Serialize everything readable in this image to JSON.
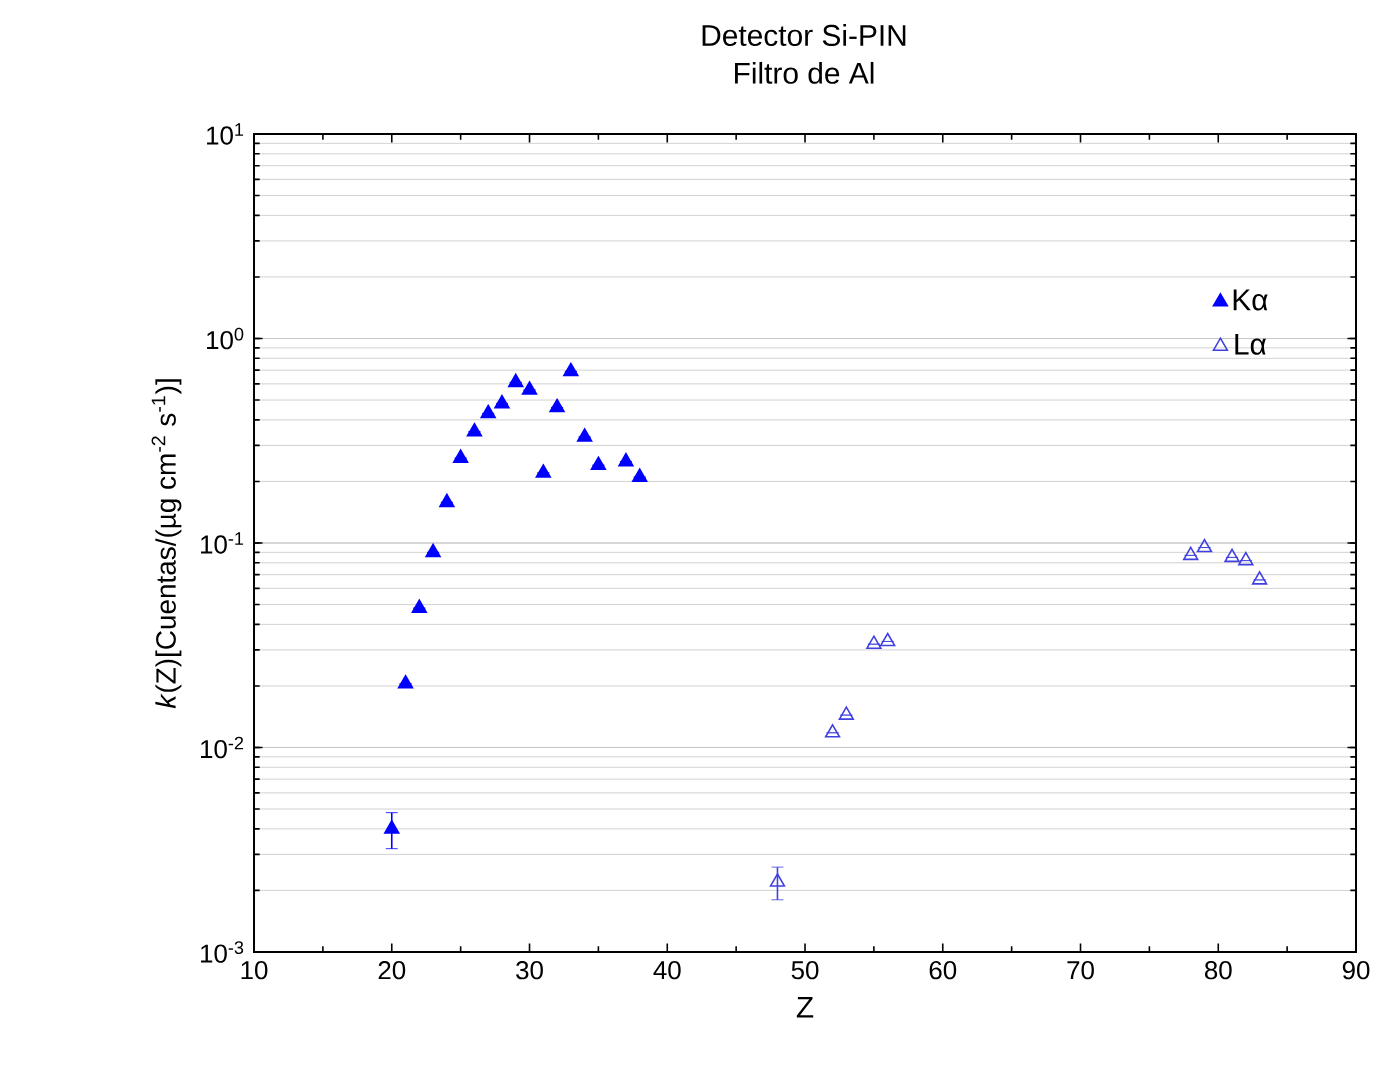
{
  "chart_data": {
    "type": "scatter",
    "title": "Detector Si-PIN",
    "subtitle": "Filtro de Al",
    "xlabel": "Z",
    "ylabel": "*k*(Z)[Cuentas/(µg cm$^{-2}$ s$^{-1}$)]",
    "log": "y",
    "grid": "y",
    "legend": "top right",
    "marker": "triangle",
    "xlim": [
      10,
      90
    ],
    "xticks": [
      10,
      20,
      30,
      40,
      50,
      60,
      70,
      80,
      90
    ],
    "ylim": [
      0.001,
      10
    ],
    "yticks": [
      {
        "value": 0.001,
        "label": "10$^{-3}$"
      },
      {
        "value": 0.01,
        "label": "10$^{-2}$"
      },
      {
        "value": 0.1,
        "label": "10$^{-1}$"
      },
      {
        "value": 1,
        "label": "10$^{0}$"
      },
      {
        "value": 10,
        "label": "10$^{1}$"
      }
    ],
    "series": [
      {
        "name": "Kα",
        "color": "#0000ff",
        "x": [
          20,
          21,
          22,
          23,
          24,
          25,
          26,
          27,
          28,
          29,
          30,
          31,
          32,
          33,
          34,
          35,
          37,
          38
        ],
        "values": [
          0.004,
          0.0205,
          0.048,
          0.09,
          0.158,
          0.26,
          0.35,
          0.43,
          0.48,
          0.61,
          0.56,
          0.22,
          0.46,
          0.69,
          0.33,
          0.24,
          0.25,
          0.21
        ],
        "errors": [
          0.0008,
          null,
          null,
          null,
          null,
          null,
          null,
          null,
          null,
          null,
          null,
          null,
          null,
          null,
          null,
          null,
          null,
          null
        ]
      },
      {
        "name": "Lα",
        "color": "#4040e0",
        "x": [
          48,
          52,
          53,
          55,
          56,
          78,
          79,
          81,
          82,
          83
        ],
        "values": [
          0.0022,
          0.0118,
          0.0144,
          0.032,
          0.033,
          0.087,
          0.095,
          0.085,
          0.082,
          0.066
        ],
        "errors": [
          0.0004,
          null,
          null,
          null,
          null,
          null,
          null,
          null,
          null,
          null
        ]
      }
    ]
  }
}
